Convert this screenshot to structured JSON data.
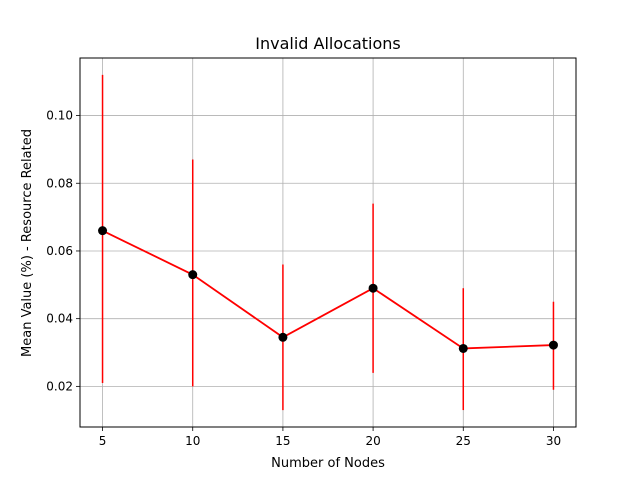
{
  "chart_data": {
    "type": "line",
    "title": "Invalid Allocations",
    "xlabel": "Number of Nodes",
    "ylabel": "Mean Value (%) - Resource Related",
    "x": [
      5,
      10,
      15,
      20,
      25,
      30
    ],
    "series": [
      {
        "values": [
          0.066,
          0.053,
          0.0345,
          0.049,
          0.0312,
          0.0322
        ],
        "error_low": [
          0.021,
          0.02,
          0.013,
          0.024,
          0.013,
          0.019
        ],
        "error_high": [
          0.112,
          0.087,
          0.056,
          0.074,
          0.049,
          0.045
        ]
      }
    ],
    "xticks": [
      "5",
      "10",
      "15",
      "20",
      "25",
      "30"
    ],
    "yticks": [
      "0.02",
      "0.04",
      "0.06",
      "0.08",
      "0.10"
    ],
    "ytick_values": [
      0.02,
      0.04,
      0.06,
      0.08,
      0.1
    ],
    "xlim": [
      3.75,
      31.25
    ],
    "ylim": [
      0.008,
      0.117
    ],
    "grid": true,
    "colors": {
      "line": "#ff0000",
      "errorbar": "#ff0000",
      "marker": "#000000",
      "grid": "#b0b0b0"
    }
  }
}
